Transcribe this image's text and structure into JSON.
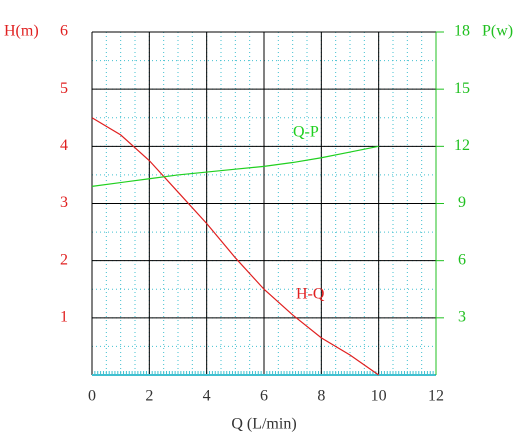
{
  "chart_data": {
    "type": "line",
    "x_label": "Q (L/min)",
    "y_label": "H(m)",
    "y2_label": "P(w)",
    "x": [
      0,
      1,
      2,
      3,
      4,
      5,
      6,
      7,
      8,
      9,
      10
    ],
    "series": [
      {
        "name": "H-Q",
        "color": "#e02020",
        "values": [
          4.5,
          4.2,
          3.75,
          3.2,
          2.65,
          2.05,
          1.5,
          1.05,
          0.65,
          0.35,
          0
        ]
      },
      {
        "name": "Q-P",
        "color": "#20d020",
        "axis": "y2",
        "values": [
          9.9,
          10.1,
          10.3,
          10.5,
          10.65,
          10.8,
          10.95,
          11.15,
          11.4,
          11.7,
          12
        ]
      }
    ],
    "xlim": [
      0,
      12
    ],
    "xticks": [
      0,
      2,
      4,
      6,
      8,
      10,
      12
    ],
    "ylim": [
      0,
      6
    ],
    "yticks": [
      1,
      2,
      3,
      4,
      5,
      6
    ],
    "y2lim": [
      0,
      18
    ],
    "y2ticks": [
      3,
      6,
      9,
      12,
      15,
      18
    ],
    "grid": true
  }
}
